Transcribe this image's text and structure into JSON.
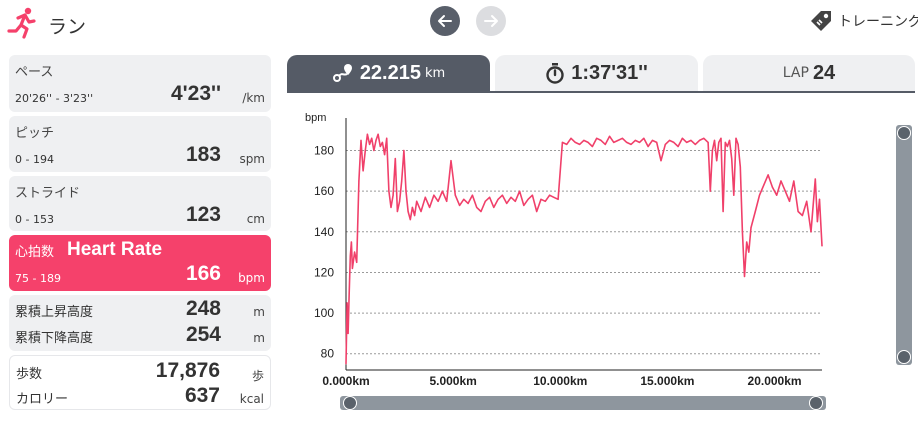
{
  "header": {
    "title": "ラン",
    "training_label": "トレーニング",
    "accent_color": "#f5416b"
  },
  "stats": {
    "pace": {
      "label": "ペース",
      "range": "20'26'' - 3'23''",
      "value": "4'23''",
      "unit": "/km"
    },
    "pitch": {
      "label": "ピッチ",
      "range": "0 - 194",
      "value": "183",
      "unit": "spm"
    },
    "stride": {
      "label": "ストライド",
      "range": "0 - 153",
      "value": "123",
      "unit": "cm"
    },
    "heart_rate": {
      "label": "心拍数",
      "label_en": "Heart Rate",
      "range": "75 - 189",
      "value": "166",
      "unit": "bpm"
    },
    "elevation": {
      "ascent_label": "累積上昇高度",
      "ascent_value": "248",
      "ascent_unit": "m",
      "descent_label": "累積下降高度",
      "descent_value": "254",
      "descent_unit": "m"
    },
    "steps": {
      "steps_label": "歩数",
      "steps_value": "17,876",
      "steps_unit": "歩",
      "calories_label": "カロリー",
      "calories_value": "637",
      "calories_unit": "kcal"
    }
  },
  "tabs": {
    "distance": {
      "value": "22.215",
      "unit": "km"
    },
    "time": {
      "value": "1:37'31''"
    },
    "lap": {
      "label": "LAP",
      "value": "24"
    }
  },
  "chart_data": {
    "type": "line",
    "ylabel": "bpm",
    "xlim": [
      0,
      22.215
    ],
    "ylim": [
      72,
      196
    ],
    "yticks": [
      80,
      100,
      120,
      140,
      160,
      180
    ],
    "xticks": [
      0,
      5,
      10,
      15,
      20
    ],
    "xtick_labels": [
      "0.000km",
      "5.000km",
      "10.000km",
      "15.000km",
      "20.000km"
    ],
    "grid": "horizontal dotted",
    "line_color": "#f0406a",
    "series": [
      {
        "x": [
          0,
          0.05,
          0.1,
          0.15,
          0.2,
          0.25,
          0.3,
          0.4,
          0.5,
          0.6,
          0.7,
          0.8,
          0.9,
          1.0,
          1.1,
          1.2,
          1.3,
          1.4,
          1.5,
          1.6,
          1.7,
          1.8,
          1.9,
          2.0,
          2.1,
          2.2,
          2.3,
          2.4,
          2.5,
          2.6,
          2.7,
          2.8,
          2.9,
          3.0,
          3.1,
          3.2,
          3.3,
          3.5,
          3.7,
          3.9,
          4.1,
          4.3,
          4.5,
          4.7,
          4.9,
          5.1,
          5.3,
          5.5,
          5.7,
          5.9,
          6.1,
          6.3,
          6.5,
          6.7,
          6.9,
          7.1,
          7.3,
          7.5,
          7.7,
          7.9,
          8.1,
          8.3,
          8.5,
          8.7,
          8.9,
          9.1,
          9.3,
          9.5,
          9.7,
          9.9,
          10.1,
          10.3,
          10.5,
          10.7,
          10.9,
          11.1,
          11.3,
          11.5,
          11.7,
          11.9,
          12.1,
          12.3,
          12.5,
          12.7,
          12.9,
          13.1,
          13.3,
          13.5,
          13.7,
          13.9,
          14.1,
          14.3,
          14.5,
          14.7,
          14.9,
          15.1,
          15.3,
          15.5,
          15.7,
          15.9,
          16.1,
          16.3,
          16.5,
          16.7,
          16.9,
          17.0,
          17.1,
          17.2,
          17.3,
          17.4,
          17.5,
          17.6,
          17.7,
          17.8,
          17.9,
          18.0,
          18.1,
          18.2,
          18.3,
          18.4,
          18.5,
          18.6,
          18.7,
          18.8,
          18.9,
          19.1,
          19.3,
          19.5,
          19.7,
          19.9,
          20.1,
          20.3,
          20.5,
          20.7,
          20.9,
          21.1,
          21.3,
          21.5,
          21.7,
          21.9,
          22.0,
          22.1,
          22.215
        ],
        "y": [
          75,
          105,
          90,
          110,
          128,
          135,
          122,
          130,
          125,
          165,
          185,
          170,
          180,
          188,
          183,
          186,
          180,
          185,
          188,
          182,
          184,
          178,
          186,
          160,
          152,
          158,
          176,
          150,
          155,
          165,
          180,
          160,
          150,
          146,
          152,
          148,
          155,
          150,
          157,
          152,
          158,
          155,
          160,
          155,
          175,
          158,
          153,
          156,
          154,
          158,
          152,
          150,
          155,
          157,
          152,
          156,
          158,
          154,
          157,
          155,
          160,
          153,
          156,
          158,
          150,
          156,
          155,
          158,
          157,
          156,
          184,
          183,
          186,
          184,
          183,
          185,
          184,
          182,
          186,
          185,
          183,
          187,
          184,
          185,
          186,
          184,
          183,
          185,
          184,
          186,
          182,
          185,
          184,
          175,
          183,
          185,
          184,
          182,
          186,
          184,
          185,
          183,
          185,
          186,
          184,
          160,
          180,
          185,
          175,
          184,
          186,
          150,
          184,
          182,
          185,
          176,
          158,
          186,
          183,
          172,
          140,
          118,
          135,
          130,
          142,
          150,
          158,
          163,
          168,
          162,
          158,
          165,
          160,
          155,
          165,
          150,
          148,
          155,
          140,
          166,
          145,
          156,
          133
        ]
      }
    ]
  }
}
